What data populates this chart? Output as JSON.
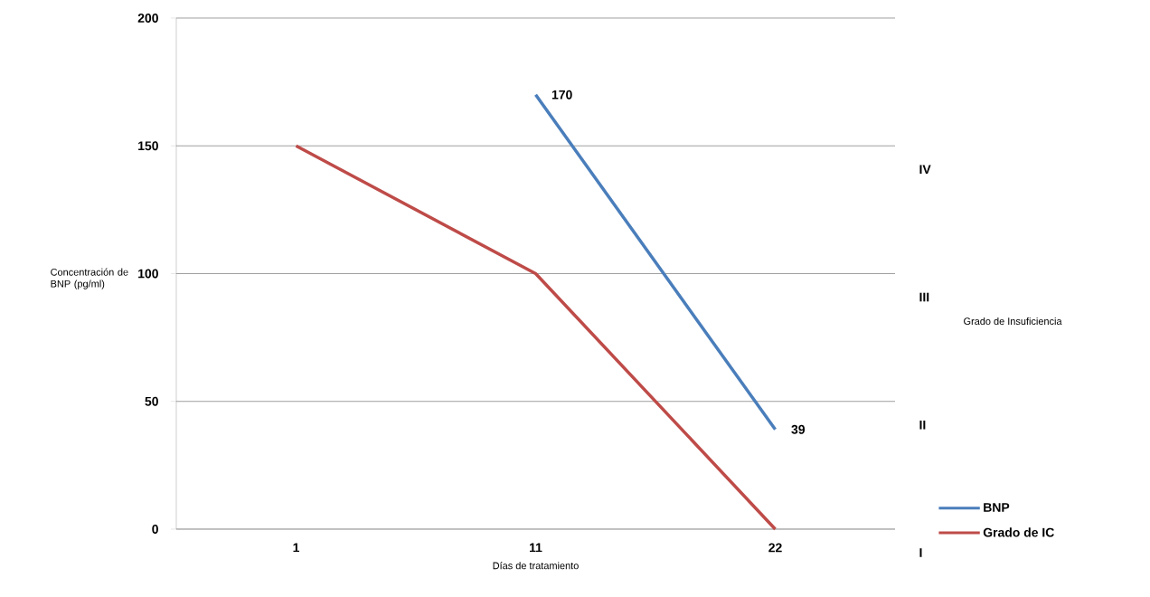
{
  "chart_data": {
    "type": "line",
    "xlabel": "Días de tratamiento",
    "ylabel": "Concentración de BNP (pg/ml)",
    "categories": [
      "1",
      "11",
      "22"
    ],
    "ylim": [
      0,
      200
    ],
    "yticks": [
      0,
      50,
      100,
      150,
      200
    ],
    "annotations": [
      "Grado de Insuficiencia",
      "I",
      "II",
      "III",
      "IV"
    ],
    "grid": "y",
    "legend": "right",
    "marker": "none",
    "line_style": "solid",
    "series": [
      {
        "name": "BNP",
        "color": "#4a7ebb",
        "values": [
          null,
          170,
          39
        ],
        "value_labels": [
          null,
          "170",
          "39"
        ]
      },
      {
        "name": "Grado de IC",
        "color": "#be4b48",
        "values": [
          150,
          100,
          0
        ]
      }
    ]
  }
}
